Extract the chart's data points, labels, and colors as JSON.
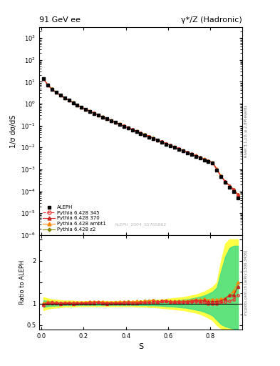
{
  "title_left": "91 GeV ee",
  "title_right": "γ*/Z (Hadronic)",
  "ylabel_main": "1/σ dσ/dS",
  "ylabel_ratio": "Ratio to ALEPH",
  "xlabel": "S",
  "right_label_top": "Rivet 3.1.10, ≥ 2.8M events",
  "right_label_bottom": "mcplots.cern.ch [arXiv:1306.3436]",
  "watermark": "ALEPH_2004_S5765862",
  "ylim_main": [
    1e-06,
    3000
  ],
  "ylim_ratio": [
    0.4,
    2.6
  ],
  "xlim": [
    -0.01,
    0.95
  ],
  "aleph_color": "#000000",
  "py345_color": "#ee3333",
  "py370_color": "#cc2222",
  "pyambt1_color": "#ff8800",
  "pyz2_color": "#888800",
  "band_yellow": "#ffff44",
  "band_green": "#44dd88",
  "x": [
    0.01,
    0.03,
    0.05,
    0.07,
    0.09,
    0.11,
    0.13,
    0.15,
    0.17,
    0.19,
    0.21,
    0.23,
    0.25,
    0.27,
    0.29,
    0.31,
    0.33,
    0.35,
    0.37,
    0.39,
    0.41,
    0.43,
    0.45,
    0.47,
    0.49,
    0.51,
    0.53,
    0.55,
    0.57,
    0.59,
    0.61,
    0.63,
    0.65,
    0.67,
    0.69,
    0.71,
    0.73,
    0.75,
    0.77,
    0.79,
    0.81,
    0.83,
    0.85,
    0.87,
    0.89,
    0.91,
    0.93
  ],
  "aleph_y": [
    14.0,
    7.0,
    4.5,
    3.2,
    2.4,
    1.8,
    1.4,
    1.1,
    0.85,
    0.67,
    0.54,
    0.44,
    0.36,
    0.29,
    0.24,
    0.2,
    0.165,
    0.137,
    0.113,
    0.093,
    0.077,
    0.064,
    0.053,
    0.044,
    0.036,
    0.03,
    0.025,
    0.021,
    0.017,
    0.014,
    0.012,
    0.01,
    0.0083,
    0.0069,
    0.0057,
    0.0047,
    0.0039,
    0.0033,
    0.0027,
    0.0023,
    0.0019,
    0.00095,
    0.00045,
    0.00025,
    0.00015,
    0.0001,
    5e-05
  ],
  "py345_y": [
    13.5,
    7.1,
    4.6,
    3.25,
    2.42,
    1.82,
    1.42,
    1.11,
    0.86,
    0.68,
    0.55,
    0.45,
    0.37,
    0.3,
    0.245,
    0.202,
    0.167,
    0.139,
    0.115,
    0.095,
    0.079,
    0.065,
    0.054,
    0.045,
    0.037,
    0.031,
    0.026,
    0.022,
    0.018,
    0.015,
    0.0124,
    0.0103,
    0.0086,
    0.0071,
    0.0059,
    0.0049,
    0.0041,
    0.0034,
    0.0028,
    0.0023,
    0.0019,
    0.00095,
    0.00046,
    0.00026,
    0.00016,
    0.00011,
    6e-05
  ],
  "py370_y": [
    13.8,
    7.05,
    4.55,
    3.22,
    2.41,
    1.81,
    1.41,
    1.1,
    0.855,
    0.675,
    0.545,
    0.445,
    0.365,
    0.298,
    0.243,
    0.2,
    0.166,
    0.138,
    0.114,
    0.094,
    0.078,
    0.065,
    0.054,
    0.045,
    0.037,
    0.031,
    0.026,
    0.022,
    0.018,
    0.015,
    0.0125,
    0.0104,
    0.0087,
    0.0072,
    0.006,
    0.005,
    0.0042,
    0.0035,
    0.0029,
    0.0024,
    0.002,
    0.001,
    0.00048,
    0.00028,
    0.00018,
    0.00012,
    7e-05
  ],
  "pyambt1_y": [
    14.2,
    7.3,
    4.7,
    3.3,
    2.45,
    1.85,
    1.44,
    1.13,
    0.87,
    0.69,
    0.56,
    0.46,
    0.375,
    0.305,
    0.25,
    0.207,
    0.171,
    0.142,
    0.118,
    0.097,
    0.081,
    0.067,
    0.056,
    0.046,
    0.038,
    0.032,
    0.027,
    0.022,
    0.018,
    0.015,
    0.0127,
    0.0106,
    0.0088,
    0.0073,
    0.0061,
    0.0051,
    0.0043,
    0.0036,
    0.003,
    0.0025,
    0.0021,
    0.00105,
    0.0005,
    0.00028,
    0.00018,
    0.00012,
    7e-05
  ],
  "pyz2_y": [
    14.0,
    7.2,
    4.65,
    3.27,
    2.43,
    1.83,
    1.43,
    1.12,
    0.86,
    0.68,
    0.55,
    0.45,
    0.37,
    0.3,
    0.246,
    0.203,
    0.168,
    0.14,
    0.116,
    0.096,
    0.08,
    0.066,
    0.055,
    0.046,
    0.038,
    0.032,
    0.027,
    0.022,
    0.018,
    0.015,
    0.0126,
    0.0105,
    0.0087,
    0.0072,
    0.006,
    0.005,
    0.0042,
    0.0035,
    0.0029,
    0.0024,
    0.002,
    0.001,
    0.00049,
    0.00028,
    0.00018,
    0.00012,
    7e-05
  ],
  "ratio_345_y": [
    0.964,
    1.014,
    1.022,
    1.016,
    1.008,
    1.011,
    1.014,
    1.009,
    1.012,
    1.015,
    1.019,
    1.023,
    1.028,
    1.034,
    1.021,
    1.01,
    1.012,
    1.015,
    1.018,
    1.022,
    1.026,
    1.016,
    1.019,
    1.023,
    1.028,
    1.033,
    1.04,
    1.048,
    1.059,
    1.071,
    1.033,
    1.03,
    1.036,
    1.029,
    1.035,
    1.043,
    1.051,
    1.03,
    1.037,
    1.0,
    1.0,
    1.0,
    1.022,
    1.04,
    1.067,
    1.1,
    1.2
  ],
  "ratio_370_y": [
    0.986,
    1.007,
    1.011,
    1.006,
    1.004,
    1.006,
    1.007,
    1.0,
    1.006,
    1.007,
    1.009,
    1.011,
    1.014,
    1.034,
    1.013,
    1.0,
    1.006,
    1.007,
    1.009,
    1.011,
    1.013,
    1.016,
    1.019,
    1.023,
    1.028,
    1.033,
    1.04,
    1.048,
    1.059,
    1.071,
    1.042,
    1.04,
    1.048,
    1.043,
    1.053,
    1.064,
    1.077,
    1.061,
    1.074,
    1.043,
    1.053,
    1.053,
    1.067,
    1.12,
    1.2,
    1.2,
    1.4
  ],
  "ratio_ambt1_y": [
    1.014,
    1.043,
    1.044,
    1.031,
    1.021,
    1.028,
    1.029,
    1.027,
    1.024,
    1.03,
    1.037,
    1.045,
    1.042,
    1.052,
    1.042,
    1.035,
    1.036,
    1.036,
    1.044,
    1.043,
    1.052,
    1.047,
    1.057,
    1.045,
    1.056,
    1.067,
    1.08,
    1.048,
    1.059,
    1.071,
    1.058,
    1.06,
    1.06,
    1.058,
    1.07,
    1.085,
    1.103,
    1.091,
    1.111,
    1.087,
    1.105,
    1.105,
    1.111,
    1.12,
    1.2,
    1.3,
    1.5
  ],
  "ratio_z2_y": [
    1.0,
    1.029,
    1.033,
    1.022,
    1.013,
    1.017,
    1.021,
    1.018,
    1.012,
    1.015,
    1.019,
    1.023,
    1.028,
    1.034,
    1.025,
    1.015,
    1.018,
    1.022,
    1.027,
    1.032,
    1.039,
    1.031,
    1.038,
    1.045,
    1.056,
    1.067,
    1.08,
    1.048,
    1.059,
    1.071,
    1.05,
    1.05,
    1.048,
    1.043,
    1.053,
    1.064,
    1.077,
    1.061,
    1.074,
    1.043,
    1.053,
    1.053,
    1.067,
    1.12,
    1.2,
    1.2,
    1.4
  ],
  "band_yellow_lo": [
    0.85,
    0.88,
    0.9,
    0.91,
    0.92,
    0.93,
    0.93,
    0.93,
    0.94,
    0.94,
    0.94,
    0.94,
    0.94,
    0.94,
    0.94,
    0.94,
    0.94,
    0.94,
    0.94,
    0.94,
    0.94,
    0.94,
    0.93,
    0.93,
    0.93,
    0.92,
    0.92,
    0.91,
    0.9,
    0.89,
    0.88,
    0.87,
    0.86,
    0.85,
    0.83,
    0.81,
    0.79,
    0.76,
    0.72,
    0.67,
    0.61,
    0.5,
    0.42,
    0.38,
    0.35,
    0.33,
    0.3
  ],
  "band_yellow_hi": [
    1.15,
    1.12,
    1.1,
    1.09,
    1.08,
    1.07,
    1.07,
    1.07,
    1.06,
    1.06,
    1.06,
    1.06,
    1.06,
    1.06,
    1.06,
    1.06,
    1.06,
    1.06,
    1.06,
    1.06,
    1.06,
    1.06,
    1.07,
    1.07,
    1.07,
    1.08,
    1.08,
    1.09,
    1.1,
    1.11,
    1.12,
    1.13,
    1.14,
    1.15,
    1.17,
    1.19,
    1.21,
    1.24,
    1.28,
    1.33,
    1.39,
    1.5,
    2.0,
    2.4,
    2.5,
    2.5,
    2.5
  ],
  "band_green_lo": [
    0.92,
    0.94,
    0.95,
    0.955,
    0.96,
    0.965,
    0.965,
    0.965,
    0.968,
    0.968,
    0.968,
    0.968,
    0.968,
    0.968,
    0.968,
    0.968,
    0.968,
    0.968,
    0.968,
    0.968,
    0.968,
    0.968,
    0.965,
    0.965,
    0.965,
    0.96,
    0.96,
    0.955,
    0.95,
    0.94,
    0.935,
    0.93,
    0.92,
    0.91,
    0.9,
    0.88,
    0.86,
    0.84,
    0.81,
    0.77,
    0.72,
    0.62,
    0.52,
    0.47,
    0.44,
    0.42,
    0.4
  ],
  "band_green_hi": [
    1.08,
    1.06,
    1.05,
    1.045,
    1.04,
    1.035,
    1.035,
    1.035,
    1.032,
    1.032,
    1.032,
    1.032,
    1.032,
    1.032,
    1.032,
    1.032,
    1.032,
    1.032,
    1.032,
    1.032,
    1.032,
    1.032,
    1.035,
    1.035,
    1.035,
    1.04,
    1.04,
    1.045,
    1.05,
    1.06,
    1.065,
    1.07,
    1.08,
    1.09,
    1.1,
    1.12,
    1.14,
    1.16,
    1.19,
    1.23,
    1.28,
    1.38,
    1.76,
    2.1,
    2.3,
    2.35,
    2.35
  ]
}
